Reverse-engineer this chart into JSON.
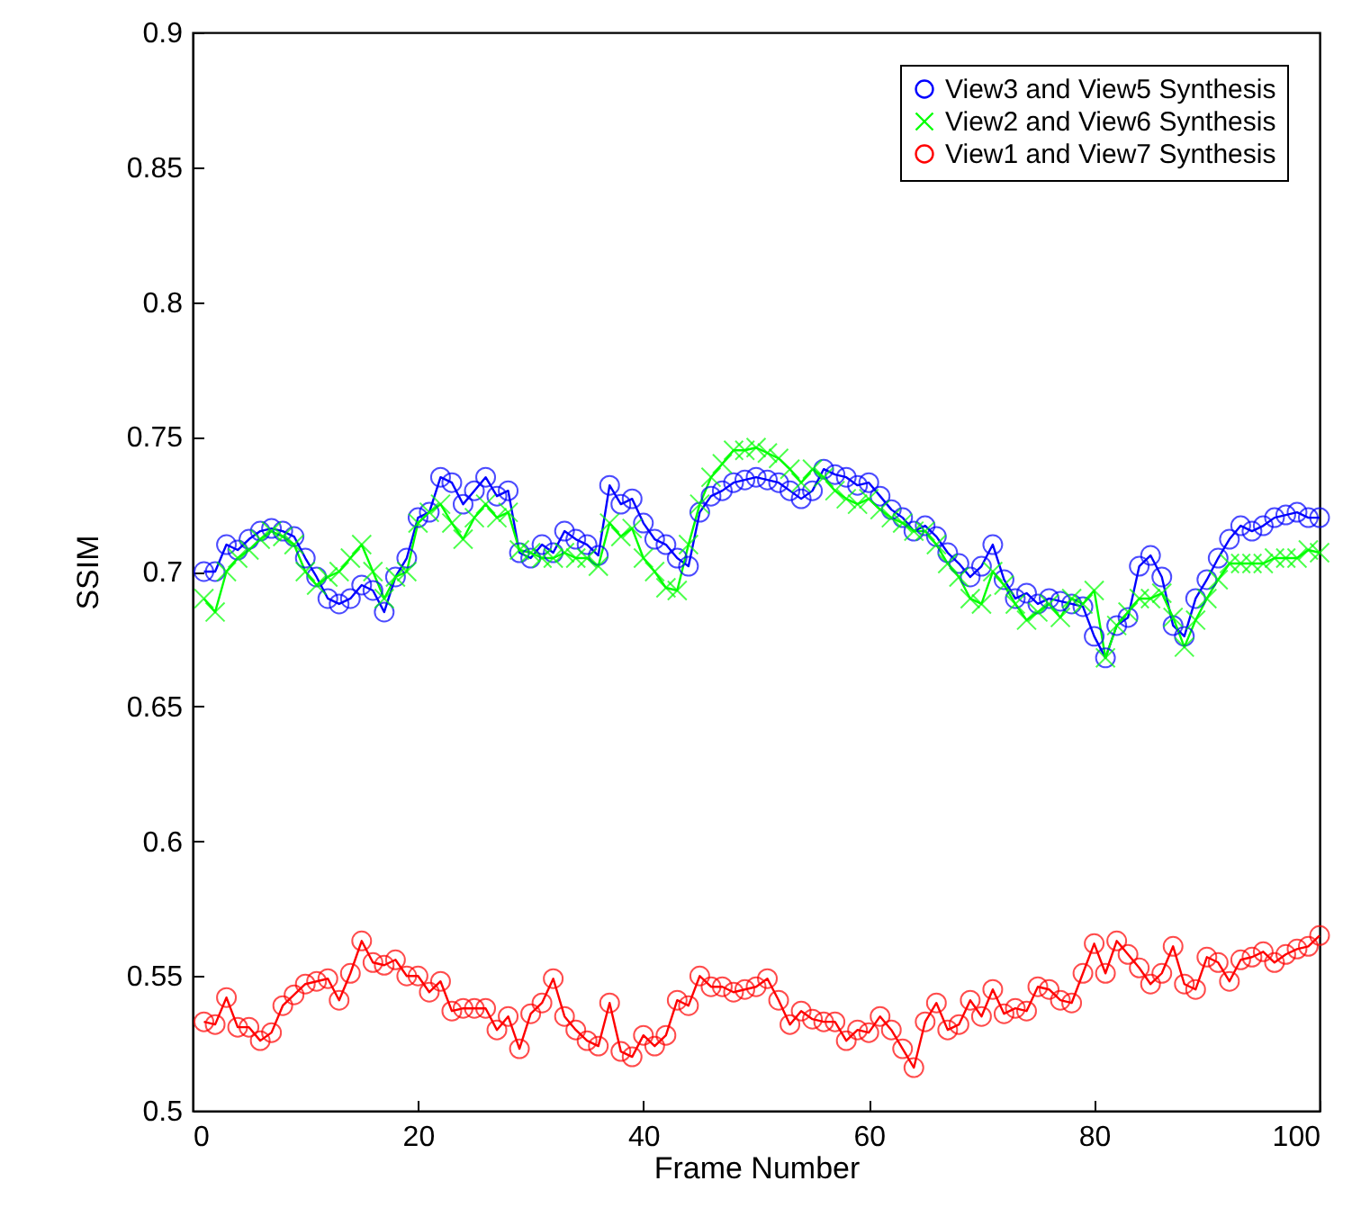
{
  "chart_data": {
    "type": "line",
    "xlabel": "Frame Number",
    "ylabel": "SSIM",
    "x": [
      1,
      2,
      3,
      4,
      5,
      6,
      7,
      8,
      9,
      10,
      11,
      12,
      13,
      14,
      15,
      16,
      17,
      18,
      19,
      20,
      21,
      22,
      23,
      24,
      25,
      26,
      27,
      28,
      29,
      30,
      31,
      32,
      33,
      34,
      35,
      36,
      37,
      38,
      39,
      40,
      41,
      42,
      43,
      44,
      45,
      46,
      47,
      48,
      49,
      50,
      51,
      52,
      53,
      54,
      55,
      56,
      57,
      58,
      59,
      60,
      61,
      62,
      63,
      64,
      65,
      66,
      67,
      68,
      69,
      70,
      71,
      72,
      73,
      74,
      75,
      76,
      77,
      78,
      79,
      80,
      81,
      82,
      83,
      84,
      85,
      86,
      87,
      88,
      89,
      90,
      91,
      92,
      93,
      94,
      95,
      96,
      97,
      98,
      99,
      100
    ],
    "xlim": [
      0,
      100
    ],
    "xticks": [
      0,
      20,
      40,
      60,
      80,
      100
    ],
    "ylim": [
      0.5,
      0.9
    ],
    "yticks": [
      0.5,
      0.55,
      0.6,
      0.65,
      0.7,
      0.75,
      0.8,
      0.85,
      0.9
    ],
    "grid": false,
    "legend": "top right",
    "line_style": "solid",
    "series": [
      {
        "name": "View3 and View5 Synthesis",
        "color": "#0000ff",
        "marker": "circle",
        "values": [
          0.7,
          0.7,
          0.71,
          0.708,
          0.712,
          0.715,
          0.716,
          0.715,
          0.713,
          0.705,
          0.698,
          0.69,
          0.688,
          0.69,
          0.695,
          0.693,
          0.685,
          0.698,
          0.705,
          0.72,
          0.722,
          0.735,
          0.733,
          0.725,
          0.73,
          0.735,
          0.728,
          0.73,
          0.707,
          0.705,
          0.71,
          0.707,
          0.715,
          0.712,
          0.71,
          0.706,
          0.732,
          0.725,
          0.727,
          0.718,
          0.712,
          0.71,
          0.705,
          0.702,
          0.722,
          0.728,
          0.73,
          0.733,
          0.734,
          0.735,
          0.734,
          0.733,
          0.73,
          0.727,
          0.73,
          0.738,
          0.736,
          0.735,
          0.732,
          0.733,
          0.728,
          0.723,
          0.72,
          0.715,
          0.717,
          0.713,
          0.707,
          0.703,
          0.698,
          0.702,
          0.71,
          0.697,
          0.69,
          0.692,
          0.688,
          0.69,
          0.689,
          0.688,
          0.687,
          0.676,
          0.668,
          0.68,
          0.683,
          0.702,
          0.706,
          0.698,
          0.68,
          0.676,
          0.69,
          0.697,
          0.705,
          0.712,
          0.717,
          0.715,
          0.717,
          0.72,
          0.721,
          0.722,
          0.72,
          0.72
        ]
      },
      {
        "name": "View2 and View6 Synthesis",
        "color": "#00ff00",
        "marker": "cross",
        "values": [
          0.69,
          0.685,
          0.7,
          0.705,
          0.708,
          0.712,
          0.715,
          0.713,
          0.71,
          0.7,
          0.695,
          0.698,
          0.7,
          0.705,
          0.71,
          0.7,
          0.69,
          0.698,
          0.7,
          0.718,
          0.722,
          0.725,
          0.718,
          0.712,
          0.72,
          0.725,
          0.72,
          0.722,
          0.708,
          0.707,
          0.705,
          0.705,
          0.707,
          0.705,
          0.705,
          0.702,
          0.718,
          0.713,
          0.716,
          0.705,
          0.7,
          0.694,
          0.693,
          0.71,
          0.725,
          0.735,
          0.74,
          0.745,
          0.745,
          0.746,
          0.744,
          0.742,
          0.738,
          0.733,
          0.738,
          0.735,
          0.73,
          0.727,
          0.725,
          0.727,
          0.723,
          0.72,
          0.718,
          0.715,
          0.715,
          0.71,
          0.703,
          0.698,
          0.69,
          0.688,
          0.7,
          0.695,
          0.688,
          0.682,
          0.685,
          0.688,
          0.683,
          0.69,
          0.688,
          0.693,
          0.668,
          0.68,
          0.685,
          0.69,
          0.69,
          0.692,
          0.683,
          0.672,
          0.682,
          0.69,
          0.697,
          0.703,
          0.703,
          0.703,
          0.703,
          0.705,
          0.705,
          0.705,
          0.708,
          0.707
        ]
      },
      {
        "name": "View1 and View7 Synthesis",
        "color": "#ff0000",
        "marker": "circle",
        "values": [
          0.533,
          0.532,
          0.542,
          0.531,
          0.531,
          0.526,
          0.529,
          0.539,
          0.543,
          0.547,
          0.548,
          0.549,
          0.541,
          0.551,
          0.563,
          0.555,
          0.554,
          0.556,
          0.55,
          0.55,
          0.544,
          0.548,
          0.537,
          0.538,
          0.538,
          0.538,
          0.53,
          0.535,
          0.523,
          0.536,
          0.54,
          0.549,
          0.535,
          0.53,
          0.526,
          0.524,
          0.54,
          0.522,
          0.52,
          0.528,
          0.524,
          0.528,
          0.541,
          0.539,
          0.55,
          0.546,
          0.546,
          0.544,
          0.545,
          0.546,
          0.549,
          0.541,
          0.532,
          0.537,
          0.534,
          0.533,
          0.533,
          0.526,
          0.53,
          0.529,
          0.535,
          0.53,
          0.523,
          0.516,
          0.533,
          0.54,
          0.53,
          0.532,
          0.541,
          0.535,
          0.545,
          0.536,
          0.538,
          0.537,
          0.546,
          0.545,
          0.541,
          0.54,
          0.551,
          0.562,
          0.551,
          0.563,
          0.558,
          0.553,
          0.547,
          0.551,
          0.561,
          0.547,
          0.545,
          0.557,
          0.555,
          0.548,
          0.556,
          0.557,
          0.559,
          0.555,
          0.558,
          0.56,
          0.561,
          0.565
        ]
      }
    ]
  }
}
